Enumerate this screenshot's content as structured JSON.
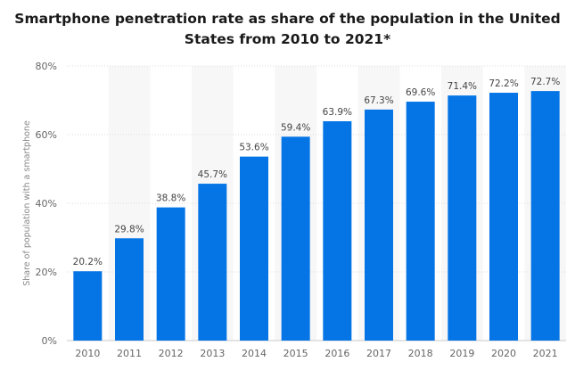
{
  "chart_data": {
    "type": "bar",
    "title_lines": [
      "Smartphone penetration rate as share of the population in the United",
      "States from 2010 to 2021*"
    ],
    "categories": [
      "2010",
      "2011",
      "2012",
      "2013",
      "2014",
      "2015",
      "2016",
      "2017",
      "2018",
      "2019",
      "2020",
      "2021"
    ],
    "values": [
      20.2,
      29.8,
      38.8,
      45.7,
      53.6,
      59.4,
      63.9,
      67.3,
      69.6,
      71.4,
      72.2,
      72.7
    ],
    "value_labels": [
      "20.2%",
      "29.8%",
      "38.8%",
      "45.7%",
      "53.6%",
      "59.4%",
      "63.9%",
      "67.3%",
      "69.6%",
      "71.4%",
      "72.2%",
      "72.7%"
    ],
    "ylabel": "Share of population with a smartphone",
    "ylim": [
      0,
      80
    ],
    "yticks": [
      0,
      20,
      40,
      60,
      80
    ],
    "ytick_labels": [
      "0%",
      "20%",
      "40%",
      "60%",
      "80%"
    ],
    "grid": true,
    "bar_color": "#0575e6",
    "band_color": "#f7f7f7"
  }
}
